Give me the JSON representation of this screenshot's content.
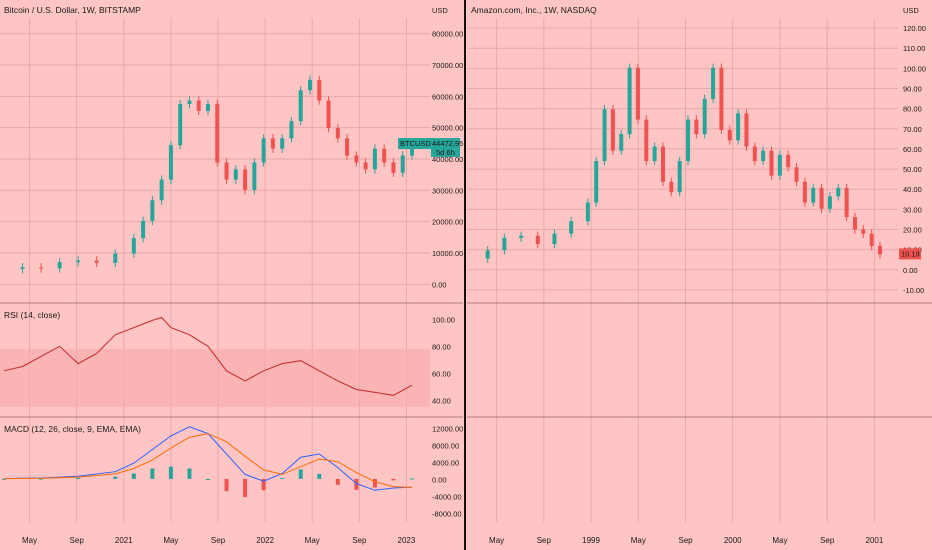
{
  "chart_data": [
    {
      "type": "line",
      "title": "Bitcoin / U.S. Dollar, 1W, BITSTAMP",
      "symbol_badge": "BTCUSD",
      "last_price": "44472.95",
      "countdown": "5d 6h",
      "currency": "USD",
      "x_ticks": [
        "May",
        "Sep",
        "2021",
        "May",
        "Sep",
        "2022",
        "May",
        "Sep",
        "2023"
      ],
      "price_ticks": [
        "80000.00",
        "70000.00",
        "60000.00",
        "50000.00",
        "40000.00",
        "30000.00",
        "20000.00",
        "10000.00",
        "0.00"
      ],
      "ylim": [
        0,
        82000
      ],
      "x": [
        0,
        4,
        8,
        12,
        16,
        20,
        24,
        28,
        30,
        32,
        34,
        36,
        38,
        40,
        42,
        44,
        46,
        48,
        50,
        52,
        54,
        56,
        58,
        60,
        62,
        64,
        66,
        68,
        70,
        72,
        74,
        76,
        78,
        80,
        82,
        84,
        86,
        88
      ],
      "close": [
        9000,
        9500,
        9200,
        11000,
        11500,
        10800,
        13500,
        18000,
        23000,
        29000,
        35000,
        45000,
        57000,
        58000,
        55000,
        57000,
        40000,
        35000,
        38000,
        32000,
        40000,
        47000,
        44000,
        47000,
        52000,
        61000,
        64000,
        58000,
        50000,
        47000,
        42000,
        40000,
        38000,
        44000,
        40000,
        37000,
        42000,
        44473
      ],
      "rsi": {
        "label": "RSI (14, close)",
        "ticks": [
          "100.00",
          "80.00",
          "60.00",
          "40.00"
        ],
        "ylim": [
          25,
          100
        ],
        "x": [
          0,
          4,
          8,
          12,
          16,
          20,
          24,
          28,
          32,
          34,
          36,
          40,
          44,
          48,
          52,
          56,
          60,
          64,
          68,
          72,
          76,
          80,
          84,
          88
        ],
        "values": [
          55,
          58,
          65,
          72,
          60,
          67,
          80,
          85,
          90,
          92,
          85,
          80,
          72,
          55,
          48,
          55,
          60,
          62,
          55,
          48,
          42,
          40,
          38,
          45
        ]
      },
      "macd": {
        "label": "MACD (12, 26, close, 9, EMA, EMA)",
        "ticks": [
          "12000.00",
          "8000.00",
          "4000.00",
          "0.00",
          "-4000.00",
          "-8000.00"
        ],
        "ylim": [
          -9500,
          13000
        ],
        "x": [
          0,
          8,
          16,
          24,
          28,
          32,
          36,
          40,
          44,
          48,
          52,
          56,
          60,
          64,
          68,
          72,
          76,
          80,
          84,
          88
        ],
        "macd": [
          100,
          200,
          600,
          1600,
          3500,
          6500,
          9500,
          11500,
          10000,
          5500,
          1000,
          -500,
          1200,
          4800,
          5500,
          2500,
          -1000,
          -2500,
          -2000,
          -1800
        ],
        "signal": [
          80,
          150,
          400,
          1100,
          2300,
          4200,
          6800,
          9200,
          10000,
          8200,
          5000,
          2000,
          1000,
          2700,
          4400,
          3800,
          1400,
          -600,
          -1700,
          -1900
        ],
        "hist": [
          20,
          50,
          200,
          500,
          1200,
          2300,
          2700,
          2300,
          0,
          -2700,
          -4000,
          -2500,
          200,
          2100,
          1100,
          -1300,
          -2400,
          -1900,
          -300,
          100
        ]
      }
    },
    {
      "type": "line",
      "title": "Amazon.com, Inc., 1W, NASDAQ",
      "last_price": "10.19",
      "currency": "USD",
      "x_ticks": [
        "May",
        "Sep",
        "1999",
        "May",
        "Sep",
        "2000",
        "May",
        "Sep",
        "2001"
      ],
      "price_ticks": [
        "120.00",
        "110.00",
        "100.00",
        "90.00",
        "80.00",
        "70.00",
        "60.00",
        "50.00",
        "40.00",
        "30.00",
        "20.00",
        "10.00",
        "0.00",
        "-10.00"
      ],
      "ylim": [
        -12,
        124
      ],
      "x": [
        0,
        4,
        8,
        12,
        16,
        20,
        24,
        28,
        30,
        32,
        34,
        36,
        38,
        40,
        42,
        44,
        46,
        48,
        50,
        52,
        54,
        56,
        58,
        60,
        62,
        64,
        66,
        68,
        70,
        72,
        74,
        76,
        78,
        80,
        82,
        84,
        86,
        88,
        90,
        92,
        94,
        96,
        98
      ],
      "close": [
        8,
        12,
        18,
        19,
        15,
        20,
        26,
        35,
        55,
        80,
        60,
        68,
        100,
        75,
        55,
        62,
        45,
        40,
        55,
        75,
        68,
        85,
        100,
        70,
        65,
        78,
        62,
        55,
        60,
        48,
        58,
        52,
        45,
        35,
        42,
        32,
        38,
        42,
        28,
        22,
        20,
        14,
        10
      ]
    }
  ],
  "labels": {
    "currency": "USD"
  }
}
